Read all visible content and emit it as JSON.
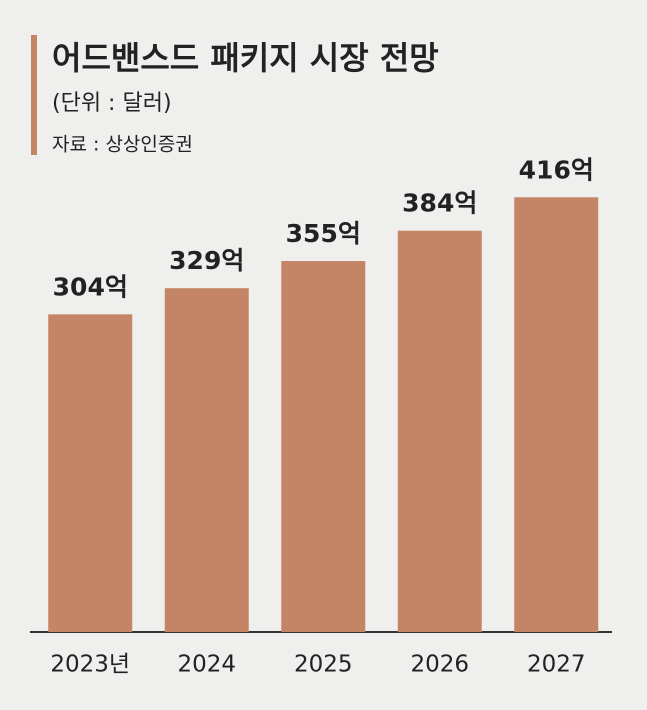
{
  "chart_data": {
    "type": "bar",
    "title": "어드밴스드 패키지 시장 전망",
    "subtitle": "(단위 : 달러)",
    "source": "자료 : 상상인증권",
    "categories": [
      "2023년",
      "2024",
      "2025",
      "2026",
      "2027"
    ],
    "values": [
      304,
      329,
      355,
      384,
      416
    ],
    "value_labels": [
      "304억",
      "329억",
      "355억",
      "384억",
      "416억"
    ],
    "color": "#c38566"
  }
}
